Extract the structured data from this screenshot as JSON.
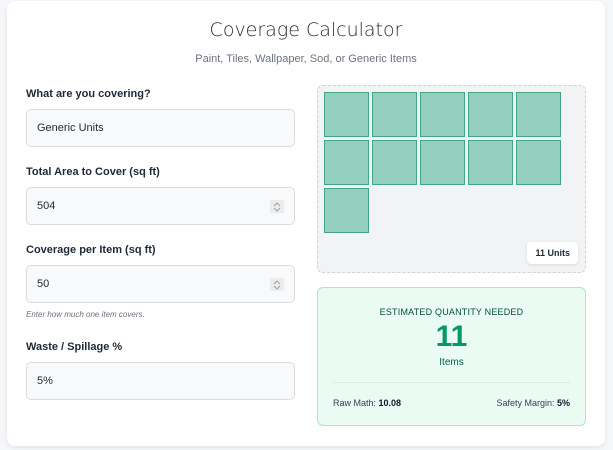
{
  "header": {
    "title": "Coverage Calculator",
    "subtitle": "Paint, Tiles, Wallpaper, Sod, or Generic Items"
  },
  "form": {
    "item_type": {
      "label": "What are you covering?",
      "value": "Generic Units"
    },
    "total_area": {
      "label": "Total Area to Cover (sq ft)",
      "value": "504"
    },
    "coverage_per_item": {
      "label": "Coverage per Item (sq ft)",
      "value": "50",
      "hint": "Enter how much one item covers."
    },
    "waste": {
      "label": "Waste / Spillage %",
      "value": "5%"
    }
  },
  "visual": {
    "tile_count": 11,
    "tile_fill": "#95cfbd",
    "tile_border": "#3fa787",
    "badge": "11 Units"
  },
  "result": {
    "label": "ESTIMATED QUANTITY NEEDED",
    "quantity": "11",
    "unit": "Items",
    "raw_math_label": "Raw Math:",
    "raw_math_value": "10.08",
    "safety_margin_label": "Safety Margin:",
    "safety_margin_value": "5%",
    "accent_color": "#059669"
  }
}
